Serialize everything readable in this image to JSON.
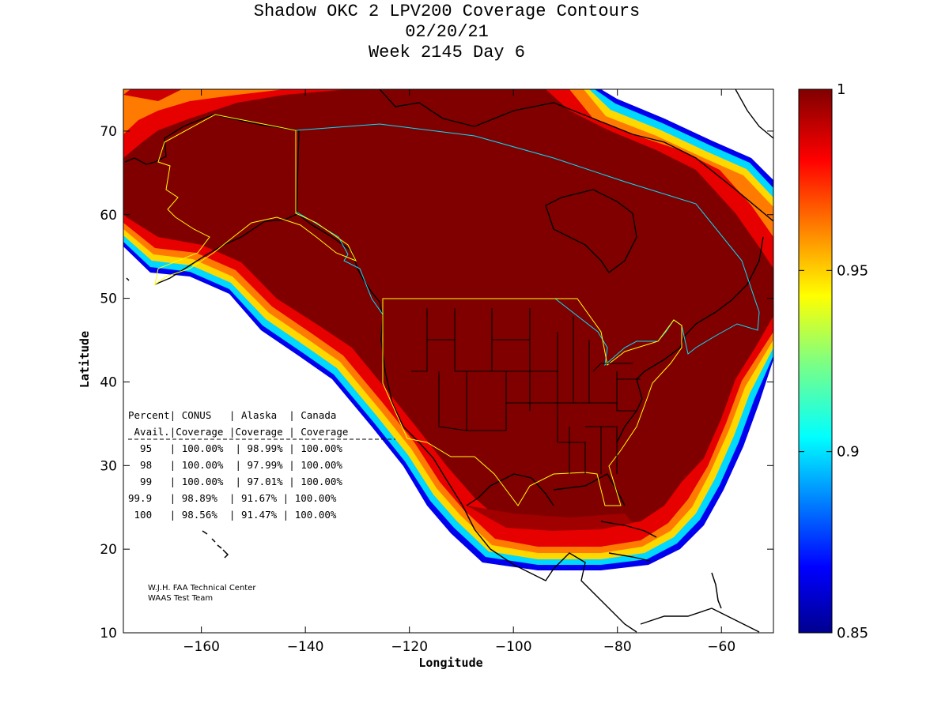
{
  "title": {
    "line1": "Shadow OKC 2 LPV200 Coverage Contours",
    "line2": "02/20/21",
    "line3": "Week 2145 Day 6"
  },
  "axes": {
    "xlabel": "Longitude",
    "ylabel": "Latitude",
    "x_ticks": [
      "-160",
      "-140",
      "-120",
      "-100",
      "-80",
      "-60"
    ],
    "y_ticks": [
      "10",
      "20",
      "30",
      "40",
      "50",
      "60",
      "70"
    ]
  },
  "colorbar": {
    "ticks": [
      "1",
      "0.95",
      "0.9",
      "0.85"
    ],
    "range": [
      0.85,
      1.0
    ],
    "colormap": "jet"
  },
  "coverage_table": {
    "header1": [
      "Percent|",
      "CONUS",
      "| Alaska",
      "| Canada"
    ],
    "header2": [
      "Avail.|Coverage",
      "|Coverage",
      "| Coverage"
    ],
    "header1_text": "Percent| CONUS   | Alaska  | Canada",
    "header2_text": " Avail.|Coverage |Coverage | Coverage",
    "rows": [
      "  95   | 100.00%  | 98.99% | 100.00%",
      "  98   | 100.00%  | 97.99% | 100.00%",
      "  99   | 100.00%  | 97.01% | 100.00%",
      "99.9   | 98.89%  | 91.67% | 100.00%",
      " 100   | 98.56%  | 91.47% | 100.00%"
    ]
  },
  "credit": {
    "line1": "W.J.H. FAA Technical Center",
    "line2": "WAAS Test Team"
  },
  "colors": {
    "core": "#800000",
    "frame": "#000000"
  }
}
